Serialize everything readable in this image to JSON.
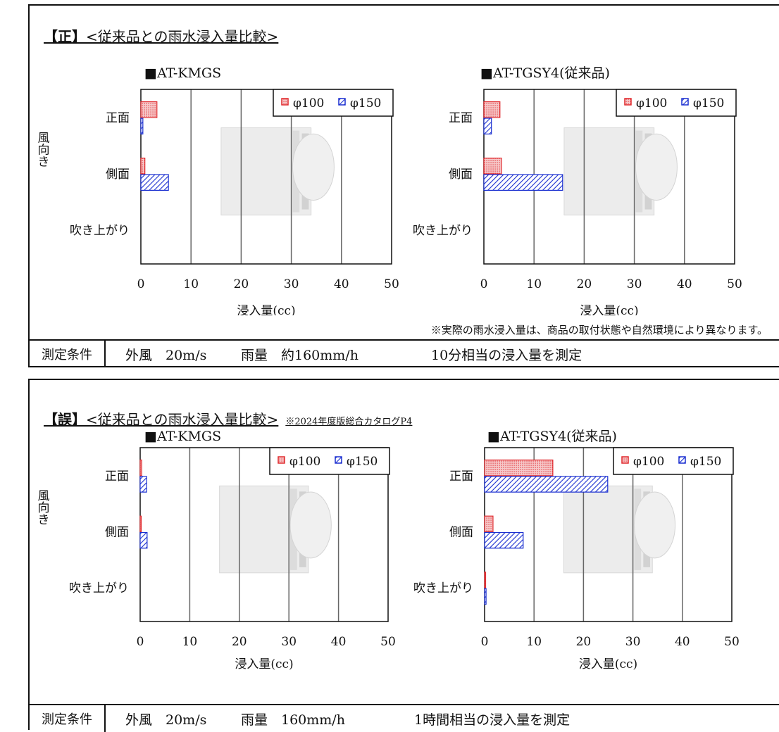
{
  "panels": [
    {
      "heading": {
        "mark": "【正】",
        "text": "<従来品との雨水浸入量比較>",
        "note": ""
      },
      "footnote": "※実際の雨水浸入量は、商品の取付状態や自然環境により異なります。",
      "condition": {
        "label": "測定条件",
        "wind": "外風　20m/s",
        "rain": "雨量　約160mm/h",
        "measure": "10分相当の浸入量を測定"
      }
    },
    {
      "heading": {
        "mark": "【誤】",
        "text": "<従来品との雨水浸入量比較>",
        "note": "※2024年度版総合カタログP4"
      },
      "footnote": "",
      "condition": {
        "label": "測定条件",
        "wind": "外風　20m/s",
        "rain": "雨量　160mm/h",
        "measure": "1時間相当の浸入量を測定"
      }
    }
  ],
  "colors": {
    "phi100": "#e0282c",
    "phi150": "#1a2fd0",
    "grid": "#666666",
    "frame": "#111111"
  },
  "chart_data": [
    {
      "type": "bar",
      "orientation": "horizontal",
      "title": "■AT-KMGS",
      "categories": [
        "正面",
        "側面",
        "吹き上がり"
      ],
      "y_group_label": "風向き",
      "xlabel": "浸入量(cc)",
      "xlim": [
        0,
        50
      ],
      "xticks": [
        0,
        10,
        20,
        30,
        40,
        50
      ],
      "legend_position": "top-right",
      "series": [
        {
          "name": "φ100",
          "values": [
            3.2,
            0.8,
            0
          ]
        },
        {
          "name": "φ150",
          "values": [
            0.4,
            5.5,
            0
          ]
        }
      ]
    },
    {
      "type": "bar",
      "orientation": "horizontal",
      "title": "■AT-TGSY4(従来品)",
      "categories": [
        "正面",
        "側面",
        "吹き上がり"
      ],
      "xlabel": "浸入量(cc)",
      "xlim": [
        0,
        50
      ],
      "xticks": [
        0,
        10,
        20,
        30,
        40,
        50
      ],
      "legend_position": "top-right",
      "series": [
        {
          "name": "φ100",
          "values": [
            3.2,
            3.5,
            0
          ]
        },
        {
          "name": "φ150",
          "values": [
            1.5,
            15.7,
            0
          ]
        }
      ]
    },
    {
      "type": "bar",
      "orientation": "horizontal",
      "title": "■AT-KMGS",
      "categories": [
        "正面",
        "側面",
        "吹き上がり"
      ],
      "y_group_label": "風向き",
      "xlabel": "浸入量(cc)",
      "xlim": [
        0,
        50
      ],
      "xticks": [
        0,
        10,
        20,
        30,
        40,
        50
      ],
      "legend_position": "top-right",
      "series": [
        {
          "name": "φ100",
          "values": [
            0.3,
            0.2,
            0
          ]
        },
        {
          "name": "φ150",
          "values": [
            1.3,
            1.4,
            0
          ]
        }
      ]
    },
    {
      "type": "bar",
      "orientation": "horizontal",
      "title": "■AT-TGSY4(従来品)",
      "categories": [
        "正面",
        "側面",
        "吹き上がり"
      ],
      "xlabel": "浸入量(cc)",
      "xlim": [
        0,
        50
      ],
      "xticks": [
        0,
        10,
        20,
        30,
        40,
        50
      ],
      "legend_position": "top-right",
      "series": [
        {
          "name": "φ100",
          "values": [
            13.8,
            1.7,
            0.2
          ]
        },
        {
          "name": "φ150",
          "values": [
            24.9,
            7.8,
            0.3
          ]
        }
      ]
    }
  ]
}
